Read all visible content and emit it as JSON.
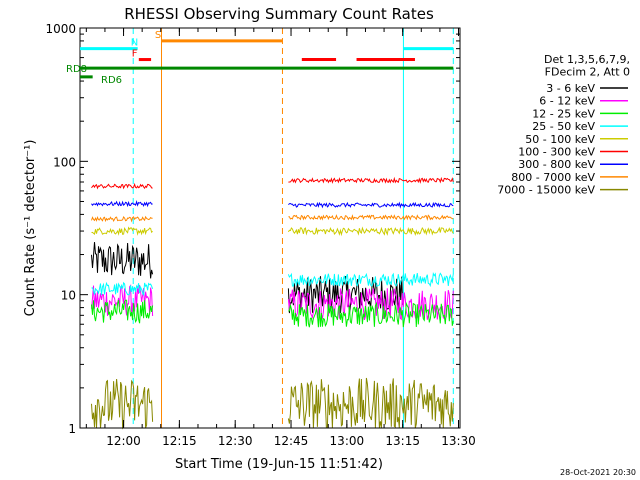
{
  "chart_data": {
    "type": "line",
    "title": "RHESSI Observing Summary Count Rates",
    "xlabel": "Start Time (19-Jun-15 11:51:42)",
    "ylabel": "Count Rate (s⁻¹ detector⁻¹)",
    "yscale": "log",
    "xlim_minutes": [
      11.7,
      30.4
    ],
    "ylim": [
      1,
      1000
    ],
    "x_ticks": [
      {
        "t": 0,
        "label": "12:00"
      },
      {
        "t": 15,
        "label": "12:15"
      },
      {
        "t": 30,
        "label": "12:30"
      },
      {
        "t": 45,
        "label": "12:45"
      },
      {
        "t": 60,
        "label": "13:00"
      },
      {
        "t": 75,
        "label": "13:15"
      },
      {
        "t": 90,
        "label": "13:30"
      }
    ],
    "y_ticks": [
      {
        "v": 1,
        "label": "1"
      },
      {
        "v": 10,
        "label": "10"
      },
      {
        "v": 100,
        "label": "100"
      },
      {
        "v": 1000,
        "label": "1000"
      }
    ],
    "legend": {
      "header": [
        "Det 1,3,5,6,7,9,",
        "FDecim 2, Att 0"
      ],
      "placement": "right"
    },
    "series": [
      {
        "name": "3 - 6 keV",
        "color": "#000000",
        "segments": [
          {
            "x": [
              -8.6,
              7.8
            ],
            "y": [
              18,
              18
            ]
          },
          {
            "x": [
              44.3,
              75
            ],
            "y": [
              10,
              10
            ]
          }
        ],
        "noise": 0.14
      },
      {
        "name": "6 - 12 keV",
        "color": "#ff00ff",
        "segments": [
          {
            "x": [
              -8.6,
              7.8
            ],
            "y": [
              9,
              9
            ]
          },
          {
            "x": [
              44.3,
              88.6
            ],
            "y": [
              8.5,
              8.5
            ]
          }
        ],
        "noise": 0.12
      },
      {
        "name": "12 - 25 keV",
        "color": "#00ee00",
        "segments": [
          {
            "x": [
              -8.6,
              7.8
            ],
            "y": [
              7.5,
              7.5
            ]
          },
          {
            "x": [
              44.3,
              88.6
            ],
            "y": [
              7,
              7
            ]
          }
        ],
        "noise": 0.09
      },
      {
        "name": "25 - 50 keV",
        "color": "#00ffff",
        "segments": [
          {
            "x": [
              -8.6,
              7.8
            ],
            "y": [
              11,
              11
            ]
          },
          {
            "x": [
              44.3,
              88.6
            ],
            "y": [
              13,
              13
            ]
          }
        ],
        "noise": 0.05
      },
      {
        "name": "50 - 100 keV",
        "color": "#cccc00",
        "segments": [
          {
            "x": [
              -8.6,
              7.8
            ],
            "y": [
              30,
              30
            ]
          },
          {
            "x": [
              44.3,
              88.6
            ],
            "y": [
              30,
              30
            ]
          }
        ],
        "noise": 0.025
      },
      {
        "name": "100 - 300 keV",
        "color": "#ff0000",
        "segments": [
          {
            "x": [
              -8.6,
              7.8
            ],
            "y": [
              65,
              65
            ]
          },
          {
            "x": [
              44.3,
              88.6
            ],
            "y": [
              72,
              72
            ]
          }
        ],
        "noise": 0.015
      },
      {
        "name": "300 - 800 keV",
        "color": "#0000ff",
        "segments": [
          {
            "x": [
              -8.6,
              7.8
            ],
            "y": [
              48,
              48
            ]
          },
          {
            "x": [
              44.3,
              88.6
            ],
            "y": [
              47,
              47
            ]
          }
        ],
        "noise": 0.015
      },
      {
        "name": "800 - 7000 keV",
        "color": "#ff8800",
        "segments": [
          {
            "x": [
              -8.6,
              7.8
            ],
            "y": [
              37,
              37
            ]
          },
          {
            "x": [
              44.3,
              88.6
            ],
            "y": [
              38,
              38
            ]
          }
        ],
        "noise": 0.015
      },
      {
        "name": "7000 - 15000 keV",
        "color": "#888800",
        "segments": [
          {
            "x": [
              -8.6,
              7.8
            ],
            "y": [
              1.5,
              1.5
            ]
          },
          {
            "x": [
              44.3,
              88.6
            ],
            "y": [
              1.5,
              1.5
            ]
          }
        ],
        "noise": 0.2
      }
    ],
    "vertical_lines": [
      {
        "t": 2.6,
        "color": "#00ffff",
        "dashed": true
      },
      {
        "t": 10.2,
        "color": "#ff8800",
        "dashed": false
      },
      {
        "t": 42.7,
        "color": "#ff8800",
        "dashed": true
      },
      {
        "t": 75.2,
        "color": "#00ffff",
        "dashed": false
      },
      {
        "t": 88.6,
        "color": "#00ffff",
        "dashed": true
      }
    ],
    "flag_bars": [
      {
        "label": "",
        "color": "#00ffff",
        "x": [
          -11.7,
          3.8
        ],
        "y": 700
      },
      {
        "label": "N",
        "color": "#00ffff",
        "x": [
          3.8,
          3.8
        ],
        "y": 700
      },
      {
        "label": "F",
        "color": "#ff0000",
        "x": [
          4.1,
          7.4
        ],
        "y": 580
      },
      {
        "label": "S",
        "color": "#ff8800",
        "x": [
          10.3,
          42.7
        ],
        "y": 800
      },
      {
        "label": "",
        "color": "#ff0000",
        "x": [
          47.9,
          57.1
        ],
        "y": 580
      },
      {
        "label": "",
        "color": "#ff0000",
        "x": [
          62.6,
          78.3
        ],
        "y": 580
      },
      {
        "label": "",
        "color": "#00ffff",
        "x": [
          75.2,
          88.6
        ],
        "y": 700
      },
      {
        "label": "RD8",
        "color": "#008800",
        "x": [
          -11.7,
          88.6
        ],
        "y": 500
      },
      {
        "label": "RD6",
        "color": "#008800",
        "x": [
          -11.7,
          -8.3
        ],
        "y": 430
      }
    ]
  },
  "footer": {
    "timestamp": "28-Oct-2021 20:30"
  }
}
